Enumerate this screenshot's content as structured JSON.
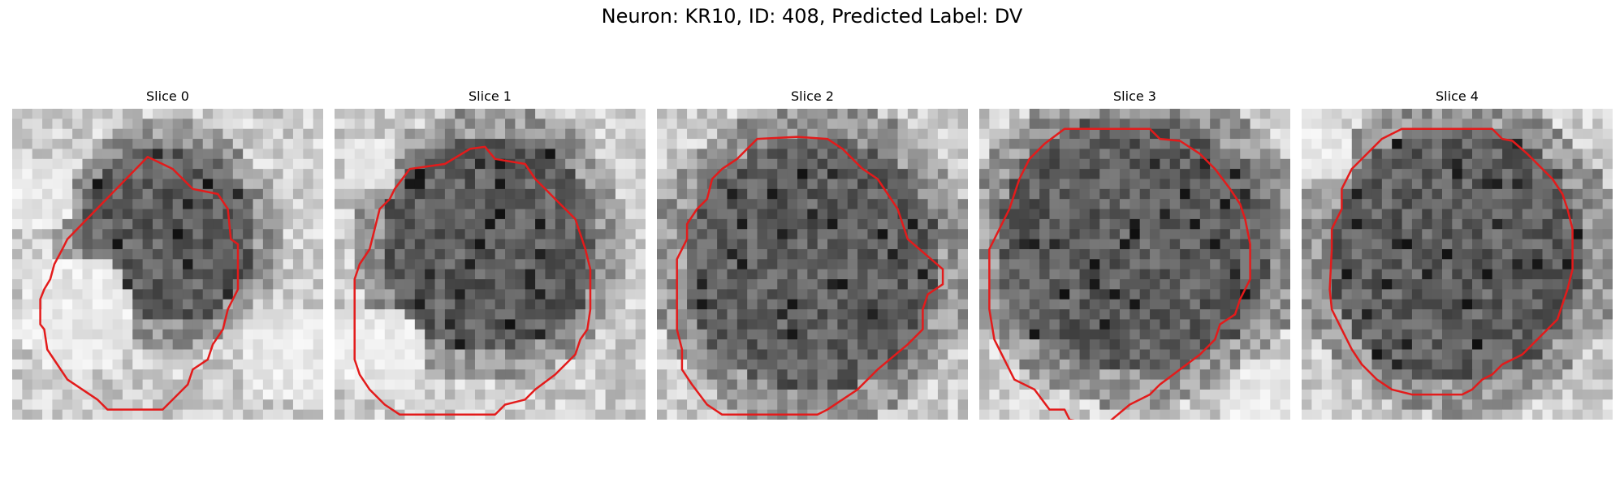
{
  "figure": {
    "title": "Neuron: KR10, ID: 408, Predicted Label: DV"
  },
  "outline_color": "#e31b1b",
  "slices": [
    {
      "label": "Slice 0"
    },
    {
      "label": "Slice 1"
    },
    {
      "label": "Slice 2"
    },
    {
      "label": "Slice 3"
    },
    {
      "label": "Slice 4"
    }
  ]
}
